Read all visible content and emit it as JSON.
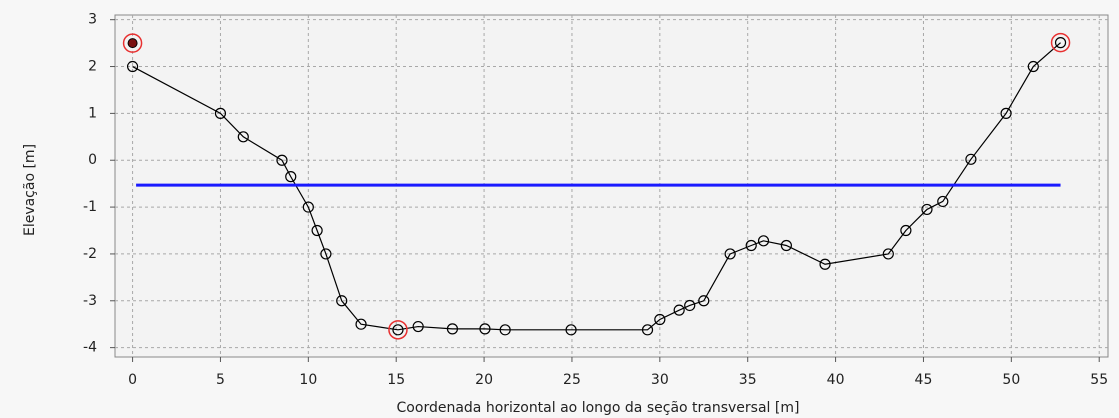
{
  "chart_data": {
    "type": "line",
    "xlabel": "Coordenada horizontal ao longo da seção transversal [m]",
    "ylabel": "Elevação [m]",
    "xlim": [
      -1,
      55.5
    ],
    "ylim": [
      -4.2,
      3.1
    ],
    "xticks": [
      0,
      5,
      10,
      15,
      20,
      25,
      30,
      35,
      40,
      45,
      50,
      55
    ],
    "yticks": [
      -4,
      -3,
      -2,
      -1,
      0,
      1,
      2,
      3
    ],
    "grid": true,
    "series": [
      {
        "color": "#000000",
        "marker": "circle",
        "x": [
          0,
          5,
          6.3,
          8.5,
          9,
          10,
          10.5,
          11,
          11.9,
          13,
          15.1,
          16.25,
          18.2,
          20.05,
          21.2,
          24.95,
          29.3,
          30,
          31.1,
          31.7,
          32.5,
          34,
          35.2,
          35.9,
          37.2,
          39.4,
          43,
          44,
          45.2,
          46.1,
          47.7,
          49.7,
          51.25,
          52.8
        ],
        "values": [
          2,
          1,
          0.5,
          0,
          -0.35,
          -1,
          -1.5,
          -2,
          -3,
          -3.5,
          -3.62,
          -3.55,
          -3.6,
          -3.6,
          -3.62,
          -3.62,
          -3.62,
          -3.4,
          -3.2,
          -3.1,
          -3,
          -2,
          -1.82,
          -1.72,
          -1.82,
          -2.22,
          -2,
          -1.5,
          -1.05,
          -0.88,
          0.02,
          1,
          2,
          2.51
        ]
      },
      {
        "color": "#1a1aff",
        "marker": "none",
        "x": [
          0.2,
          52.8
        ],
        "values": [
          -0.53,
          -0.53
        ]
      },
      {
        "color": "#e83030",
        "marker": "ring",
        "x": [
          0,
          15.1,
          52.8
        ],
        "values": [
          2.5,
          -3.62,
          2.51
        ]
      },
      {
        "color": "#000000",
        "marker": "dot",
        "x": [
          0
        ],
        "values": [
          2.5
        ]
      }
    ]
  }
}
